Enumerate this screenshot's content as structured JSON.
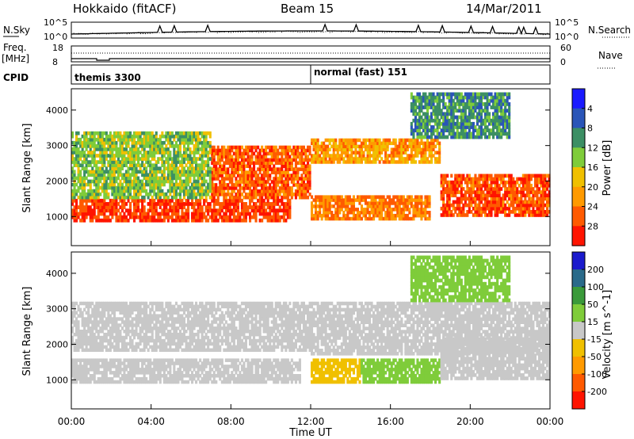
{
  "header": {
    "station": "Hokkaido (fitACF)",
    "beam": "Beam 15",
    "date": "14/Mar/2011"
  },
  "summary": {
    "nsky_label": "N.Sky",
    "nsearch_label": "N.Search",
    "freq_label": "Freq.",
    "freq_unit": "[MHz]",
    "nave_label": "Nave",
    "cpid_label": "CPID",
    "ticks": {
      "nsky_top": "10^5",
      "nsky_bottom": "10^0",
      "freq_top": "18",
      "freq_bottom": "8",
      "nave_top": "60",
      "nave_bottom": "0"
    },
    "cpid_segments": [
      {
        "label": "themis 3300",
        "start_hour": 0
      },
      {
        "label": "normal (fast) 151",
        "start_hour": 12
      }
    ]
  },
  "chart_data": [
    {
      "type": "heatmap",
      "name": "Power",
      "xlabel": "",
      "ylabel": "Slant Range [km]",
      "xlim": [
        0,
        24
      ],
      "ylim": [
        180,
        4600
      ],
      "yticks": [
        "1000",
        "2000",
        "3000",
        "4000"
      ],
      "colorbar": {
        "label": "Power [dB]",
        "ticks": [
          "4",
          "8",
          "12",
          "16",
          "20",
          "24",
          "28"
        ],
        "colors": [
          "#1a1aff",
          "#2a55b8",
          "#3c8f64",
          "#7fcc3a",
          "#f0c000",
          "#ff9a00",
          "#ff5a00",
          "#ff1400"
        ]
      },
      "regions": [
        {
          "hours": [
            0,
            11
          ],
          "range_km": [
            850,
            1500
          ],
          "value_db": 28
        },
        {
          "hours": [
            7,
            12
          ],
          "range_km": [
            1500,
            3000
          ],
          "value_db": 26
        },
        {
          "hours": [
            12,
            18.5
          ],
          "range_km": [
            2500,
            3200
          ],
          "value_db": 22
        },
        {
          "hours": [
            12,
            18
          ],
          "range_km": [
            900,
            1600
          ],
          "value_db": 24
        },
        {
          "hours": [
            18.5,
            24
          ],
          "range_km": [
            1000,
            2200
          ],
          "value_db": 27
        },
        {
          "hours": [
            0,
            7
          ],
          "range_km": [
            1500,
            3400
          ],
          "value_db": 14
        },
        {
          "hours": [
            17,
            22
          ],
          "range_km": [
            3200,
            4500
          ],
          "value_db": 10
        }
      ]
    },
    {
      "type": "heatmap",
      "name": "Velocity",
      "xlabel": "Time UT",
      "ylabel": "Slant Range [km]",
      "xlim": [
        0,
        24
      ],
      "ylim": [
        180,
        4600
      ],
      "xticks": [
        "00:00",
        "04:00",
        "08:00",
        "12:00",
        "16:00",
        "20:00",
        "00:00"
      ],
      "yticks": [
        "1000",
        "2000",
        "3000",
        "4000"
      ],
      "colorbar": {
        "label": "Velocity [m s^-1]",
        "ticks": [
          "200",
          "100",
          "50",
          "15",
          "-15",
          "-50",
          "-100",
          "-200"
        ],
        "colors": [
          "#1a1acc",
          "#2a6a8a",
          "#3a9a3a",
          "#7fcc3a",
          "#c8c8c8",
          "#f0c000",
          "#ff9a00",
          "#ff5a00",
          "#ff1400"
        ]
      },
      "regions": [
        {
          "hours": [
            0,
            11.5
          ],
          "range_km": [
            900,
            1600
          ],
          "value_ms": 0
        },
        {
          "hours": [
            0,
            12
          ],
          "range_km": [
            1800,
            3200
          ],
          "value_ms": 0
        },
        {
          "hours": [
            12,
            24
          ],
          "range_km": [
            1700,
            3200
          ],
          "value_ms": 0
        },
        {
          "hours": [
            12,
            14.5
          ],
          "range_km": [
            900,
            1600
          ],
          "value_ms": -40
        },
        {
          "hours": [
            14.5,
            18.5
          ],
          "range_km": [
            900,
            1600
          ],
          "value_ms": 40
        },
        {
          "hours": [
            18.5,
            24
          ],
          "range_km": [
            1000,
            2200
          ],
          "value_ms": 0
        },
        {
          "hours": [
            17,
            22
          ],
          "range_km": [
            3200,
            4500
          ],
          "value_ms": 40
        }
      ]
    }
  ]
}
